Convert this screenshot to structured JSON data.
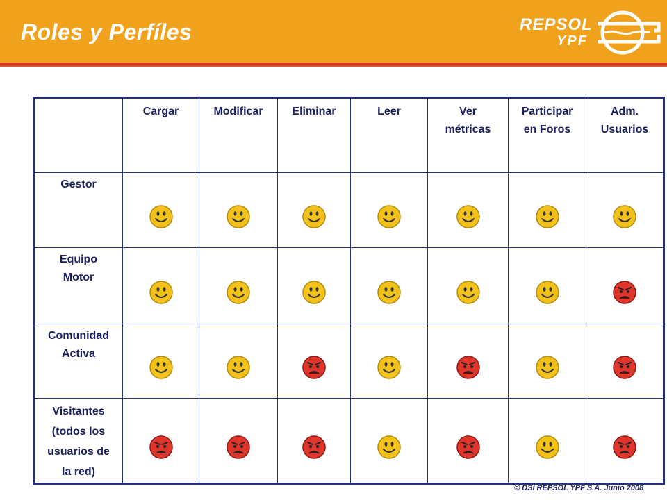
{
  "header": {
    "title": "Roles y Perfíles",
    "logo_line1": "REPSOL",
    "logo_line2": "YPF"
  },
  "table": {
    "columns": [
      "Cargar",
      "Modificar",
      "Eliminar",
      "Leer",
      "Ver métricas",
      "Participar en Foros",
      "Adm. Usuarios"
    ],
    "column_lines": [
      [
        "Cargar"
      ],
      [
        "Modificar"
      ],
      [
        "Eliminar"
      ],
      [
        "Leer"
      ],
      [
        "Ver",
        "métricas"
      ],
      [
        "Participar",
        "en Foros"
      ],
      [
        "Adm.",
        "Usuarios"
      ]
    ],
    "rows": [
      {
        "role": "Gestor",
        "role_lines": [
          "Gestor"
        ],
        "permissions": [
          "allow",
          "allow",
          "allow",
          "allow",
          "allow",
          "allow",
          "allow"
        ]
      },
      {
        "role": "Equipo Motor",
        "role_lines": [
          "Equipo",
          "Motor"
        ],
        "permissions": [
          "allow",
          "allow",
          "allow",
          "allow",
          "allow",
          "allow",
          "deny"
        ]
      },
      {
        "role": "Comunidad Activa",
        "role_lines": [
          "Comunidad",
          "Activa"
        ],
        "permissions": [
          "allow",
          "allow",
          "deny",
          "allow",
          "deny",
          "allow",
          "deny"
        ]
      },
      {
        "role": "Visitantes (todos los usuarios de la red)",
        "role_lines": [
          "Visitantes",
          "(todos los",
          "usuarios de",
          "la red)"
        ],
        "permissions": [
          "deny",
          "deny",
          "deny",
          "allow",
          "deny",
          "allow",
          "deny"
        ]
      }
    ]
  },
  "legend_icons": {
    "allow": "smiley-happy-icon",
    "deny": "smiley-angry-icon"
  },
  "colors": {
    "header_bg": "#f0a21d",
    "header_shadow": "#c9291c",
    "table_border": "#24307a",
    "text": "#1a2060",
    "happy_face": "#f2c21b",
    "angry_face": "#e0352a"
  },
  "footer": {
    "copyright": "© DSI REPSOL YPF S.A. Junio 2008"
  }
}
